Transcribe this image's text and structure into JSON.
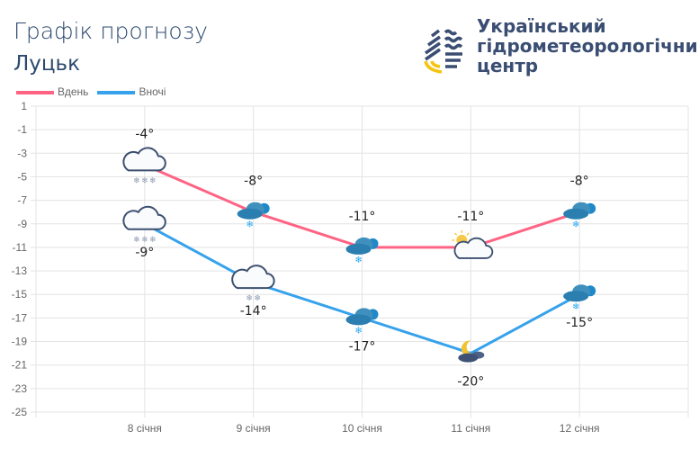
{
  "header": {
    "title": "Графік прогнозу",
    "city": "Луцьк"
  },
  "logo": {
    "lines": [
      "Український",
      "гідрометеорологічний",
      "центр"
    ]
  },
  "colors": {
    "day": "#ff6384",
    "night": "#36a2eb",
    "grid": "#e3e3e3",
    "text": "#222222"
  },
  "chart_data": {
    "type": "line",
    "categories": [
      "8 січня",
      "9 січня",
      "10 січня",
      "11 січня",
      "12 січня"
    ],
    "series": [
      {
        "name": "Вдень",
        "values": [
          -4,
          -8,
          -11,
          -11,
          -8
        ],
        "labels": [
          "-4°",
          "-8°",
          "-11°",
          "-11°",
          "-8°"
        ],
        "icons": [
          "cloud-snow-heavy-icon",
          "clouds-snow-icon",
          "clouds-snow-icon",
          "sun-cloud-icon",
          "clouds-snow-icon"
        ]
      },
      {
        "name": "Вночі",
        "values": [
          -9,
          -14,
          -17,
          -20,
          -15
        ],
        "labels": [
          "-9°",
          "-14°",
          "-17°",
          "-20°",
          "-15°"
        ],
        "icons": [
          "cloud-snow-heavy-icon",
          "cloud-snow-light-icon",
          "clouds-snow-icon",
          "moon-clouds-icon",
          "clouds-snow-icon"
        ]
      }
    ],
    "ylim": [
      -25,
      1
    ],
    "yticks": [
      "1",
      "-1",
      "-3",
      "-5",
      "-7",
      "-9",
      "-11",
      "-13",
      "-15",
      "-17",
      "-19",
      "-21",
      "-23",
      "-25"
    ],
    "grid": true,
    "legend": "top-left"
  }
}
